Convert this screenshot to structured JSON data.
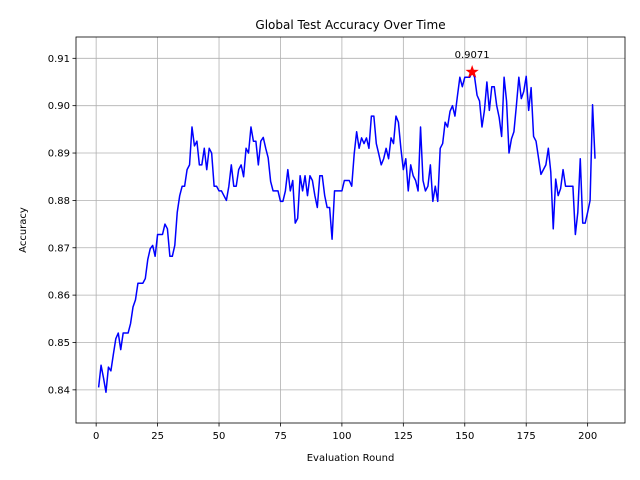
{
  "chart_data": {
    "type": "line",
    "title": "Global Test Accuracy Over Time",
    "xlabel": "Evaluation Round",
    "ylabel": "Accuracy",
    "xlim": [
      -8.2,
      215.2
    ],
    "ylim": [
      0.833,
      0.9145
    ],
    "xticks": [
      0,
      25,
      50,
      75,
      100,
      125,
      150,
      175,
      200
    ],
    "yticks": [
      0.84,
      0.85,
      0.86,
      0.87,
      0.88,
      0.89,
      0.9,
      0.91
    ],
    "ytick_labels": [
      "0.84",
      "0.85",
      "0.86",
      "0.87",
      "0.88",
      "0.89",
      "0.90",
      "0.91"
    ],
    "grid": true,
    "line_color": "#0000ff",
    "series": [
      {
        "x": [
          1,
          2,
          3,
          4,
          5,
          6,
          7,
          8,
          9,
          10,
          11,
          12,
          13,
          14,
          15,
          16,
          17,
          18,
          19,
          20,
          21,
          22,
          23,
          24,
          25,
          26,
          27,
          28,
          29,
          30,
          31,
          32,
          33,
          34,
          35,
          36,
          37,
          38,
          39,
          40,
          41,
          42,
          43,
          44,
          45,
          46,
          47,
          48,
          49,
          50,
          51,
          52,
          53,
          54,
          55,
          56,
          57,
          58,
          59,
          60,
          61,
          62,
          63,
          64,
          65,
          66,
          67,
          68,
          69,
          70,
          71,
          72,
          73,
          74,
          75,
          76,
          77,
          78,
          79,
          80,
          81,
          82,
          83,
          84,
          85,
          86,
          87,
          88,
          89,
          90,
          91,
          92,
          93,
          94,
          95,
          96,
          97,
          98,
          99,
          100,
          101,
          102,
          103,
          104,
          105,
          106,
          107,
          108,
          109,
          110,
          111,
          112,
          113,
          114,
          115,
          116,
          117,
          118,
          119,
          120,
          121,
          122,
          123,
          124,
          125,
          126,
          127,
          128,
          129,
          130,
          131,
          132,
          133,
          134,
          135,
          136,
          137,
          138,
          139,
          140,
          141,
          142,
          143,
          144,
          145,
          146,
          147,
          148,
          149,
          150,
          151,
          152,
          153,
          154,
          155,
          156,
          157,
          158,
          159,
          160,
          161,
          162,
          163,
          164,
          165,
          166,
          167,
          168,
          169,
          170,
          171,
          172,
          173,
          174,
          175,
          176,
          177,
          178,
          179,
          180,
          181,
          182,
          183,
          184,
          185,
          186,
          187,
          188,
          189,
          190,
          191,
          192,
          193,
          194,
          195,
          196,
          197,
          198,
          199,
          200,
          201,
          202,
          203
        ],
        "y": [
          0.8405,
          0.8452,
          0.8425,
          0.8395,
          0.8448,
          0.844,
          0.8475,
          0.8508,
          0.852,
          0.8485,
          0.852,
          0.852,
          0.852,
          0.854,
          0.8575,
          0.859,
          0.8625,
          0.8625,
          0.8625,
          0.8635,
          0.8675,
          0.8698,
          0.8705,
          0.8682,
          0.8728,
          0.8728,
          0.8728,
          0.875,
          0.874,
          0.8682,
          0.8682,
          0.8705,
          0.8775,
          0.881,
          0.883,
          0.883,
          0.8865,
          0.8875,
          0.8955,
          0.8915,
          0.8925,
          0.8875,
          0.8875,
          0.891,
          0.8865,
          0.891,
          0.89,
          0.883,
          0.883,
          0.882,
          0.882,
          0.881,
          0.88,
          0.883,
          0.8875,
          0.883,
          0.883,
          0.8865,
          0.8875,
          0.885,
          0.891,
          0.89,
          0.8955,
          0.8925,
          0.8925,
          0.8875,
          0.8925,
          0.8933,
          0.891,
          0.889,
          0.884,
          0.882,
          0.882,
          0.882,
          0.8798,
          0.8798,
          0.882,
          0.8865,
          0.882,
          0.8842,
          0.8752,
          0.8762,
          0.8852,
          0.882,
          0.8852,
          0.881,
          0.8852,
          0.8842,
          0.881,
          0.8785,
          0.8852,
          0.8852,
          0.881,
          0.8785,
          0.8785,
          0.8718,
          0.882,
          0.882,
          0.882,
          0.882,
          0.8842,
          0.8842,
          0.8842,
          0.883,
          0.8898,
          0.8945,
          0.891,
          0.8932,
          0.892,
          0.8932,
          0.891,
          0.8978,
          0.8978,
          0.892,
          0.8898,
          0.8875,
          0.8888,
          0.891,
          0.8888,
          0.8932,
          0.892,
          0.8978,
          0.8965,
          0.891,
          0.8865,
          0.8888,
          0.882,
          0.8875,
          0.8852,
          0.8842,
          0.882,
          0.8955,
          0.8842,
          0.882,
          0.883,
          0.8875,
          0.8798,
          0.883,
          0.8798,
          0.891,
          0.892,
          0.8965,
          0.8955,
          0.8988,
          0.9,
          0.8978,
          0.902,
          0.906,
          0.904,
          0.906,
          0.906,
          0.906,
          0.9071,
          0.906,
          0.9022,
          0.901,
          0.8955,
          0.899,
          0.905,
          0.899,
          0.904,
          0.904,
          0.9,
          0.8975,
          0.8935,
          0.906,
          0.901,
          0.89,
          0.893,
          0.8945,
          0.9,
          0.906,
          0.9015,
          0.903,
          0.9062,
          0.899,
          0.9038,
          0.8935,
          0.8925,
          0.889,
          0.8855,
          0.8865,
          0.8875,
          0.891,
          0.886,
          0.874,
          0.8845,
          0.881,
          0.8825,
          0.8865,
          0.883,
          0.883,
          0.883,
          0.883,
          0.8728,
          0.8775,
          0.8888,
          0.8752,
          0.8752,
          0.8775,
          0.88,
          0.9002,
          0.8888
        ]
      }
    ],
    "highlight": {
      "x": 153,
      "y": 0.9071,
      "label": "0.9071",
      "color": "#ff0000",
      "marker": "star"
    }
  }
}
